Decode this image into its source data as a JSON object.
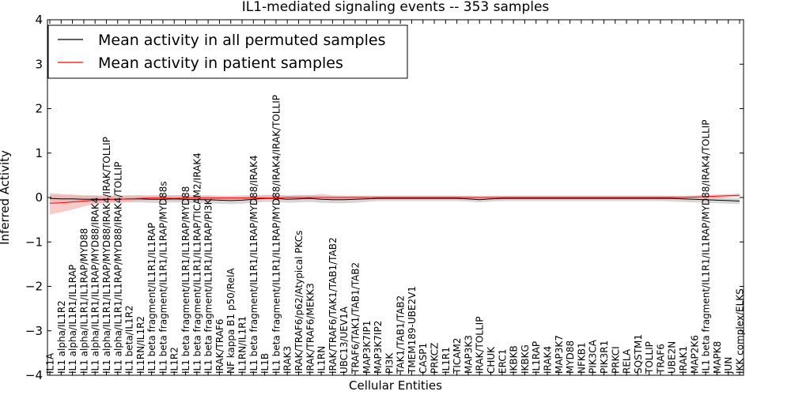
{
  "chart_data": {
    "type": "line",
    "title": "IL1-mediated signaling events -- 353 samples",
    "xlabel": "Cellular Entities",
    "ylabel": "Inferred Activity",
    "ylim": [
      -4,
      4
    ],
    "yticks": [
      -4,
      -3,
      -2,
      -1,
      0,
      1,
      2,
      3,
      4
    ],
    "ytick_labels": [
      "−4",
      "−3",
      "−2",
      "−1",
      "0",
      "1",
      "2",
      "3",
      "4"
    ],
    "grid": false,
    "legend_location": "top-left",
    "categories": [
      "IL1A",
      "IL1 alpha/IL1R2",
      "IL1 alpha/IL1R1/IL1RAP",
      "IL1 alpha/IL1R1/IL1RAP/MYD88",
      "IL1 alpha/IL1R1/IL1RAP/MYD88/IRAK4",
      "IL1 alpha/IL1R1/IL1RAP/MYD88/IRAK4/IRAK/TOLLIP",
      "IL1 alpha/IL1R1/IL1RAP/MYD88/IRAK4/TOLLIP",
      "IL1 beta/IL1R2",
      "IL1RN/IL1R2",
      "IL1 beta fragment/IL1R1/IL1RAP",
      "IL1 beta fragment/IL1R1/IL1RAP/MYD88s",
      "IL1R2",
      "IL1 beta fragment/IL1R1/IL1RAP/MYD88",
      "IL1 beta fragment/IL1R1/IL1RAP/TICAM2/IRAK4",
      "IL1 beta fragment/IL1R1/IL1RAP/PI3K",
      "IRAK/TRAF6",
      "NF kappa B1 p50/RelA",
      "IL1RN/IL1R1",
      "IL1 beta fragment/IL1R1/IL1RAP/MYD88/IRAK4",
      "IL1B",
      "IL1 beta fragment/IL1R1/IL1RAP/MYD88/IRAK4/IRAK/TOLLIP",
      "IRAK3",
      "IRAK/TRAF6/p62/Atypical PKCs",
      "IRAK/TRAF6/MEKK3",
      "IL1RN",
      "IRAK/TRAF6/TAK1/TAB1/TAB2",
      "UBC13/UEV1A",
      "TRAF6/TAK1/TAB1/TAB2",
      "MAP3K7IP1",
      "MAP3K7IP2",
      "PI3K",
      "TAK1/TAB1/TAB2",
      "TMEM189-UBE2V1",
      "CASP1",
      "PRKCZ",
      "IL1R1",
      "TICAM2",
      "MAP3K3",
      "IRAK/TOLLIP",
      "CHUK",
      "ERC1",
      "IKBKB",
      "IKBKG",
      "IL1RAP",
      "IRAK4",
      "MAP3K7",
      "MYD88",
      "NFKB1",
      "PIK3CA",
      "PIK3R1",
      "PRKCI",
      "RELA",
      "SQSTM1",
      "TOLLIP",
      "TRAF6",
      "UBE2N",
      "IRAK1",
      "MAP2K6",
      "IL1 beta fragment/IL1R1/IL1RAP/MYD88/IRAK4/TOLLIP",
      "MAPK8",
      "JUN",
      "IKK complex/ELKS"
    ],
    "series": [
      {
        "name": "Mean activity in all permuted samples",
        "color": "#000000",
        "band_color": "#c0c0c0",
        "values": [
          -0.02,
          -0.03,
          -0.03,
          -0.04,
          -0.04,
          -0.04,
          -0.04,
          -0.03,
          -0.03,
          -0.04,
          -0.04,
          -0.03,
          -0.04,
          -0.05,
          -0.05,
          -0.06,
          -0.07,
          -0.06,
          -0.04,
          -0.02,
          -0.02,
          -0.04,
          -0.03,
          -0.02,
          -0.04,
          -0.05,
          -0.05,
          -0.04,
          -0.03,
          -0.02,
          -0.02,
          -0.02,
          -0.02,
          -0.02,
          -0.02,
          -0.02,
          -0.02,
          -0.03,
          -0.05,
          -0.03,
          -0.02,
          -0.02,
          -0.02,
          -0.02,
          -0.02,
          -0.02,
          -0.02,
          -0.02,
          -0.02,
          -0.02,
          -0.02,
          -0.02,
          -0.02,
          -0.02,
          -0.02,
          -0.02,
          -0.03,
          -0.04,
          -0.05,
          -0.06,
          -0.07,
          -0.08
        ],
        "band_lower": [
          -0.1,
          -0.12,
          -0.12,
          -0.12,
          -0.12,
          -0.12,
          -0.12,
          -0.11,
          -0.11,
          -0.12,
          -0.12,
          -0.11,
          -0.12,
          -0.13,
          -0.13,
          -0.14,
          -0.15,
          -0.14,
          -0.12,
          -0.1,
          -0.1,
          -0.12,
          -0.11,
          -0.1,
          -0.12,
          -0.13,
          -0.13,
          -0.12,
          -0.1,
          -0.08,
          -0.08,
          -0.08,
          -0.08,
          -0.08,
          -0.08,
          -0.08,
          -0.08,
          -0.09,
          -0.11,
          -0.09,
          -0.08,
          -0.08,
          -0.08,
          -0.08,
          -0.08,
          -0.08,
          -0.08,
          -0.08,
          -0.08,
          -0.08,
          -0.08,
          -0.08,
          -0.08,
          -0.08,
          -0.08,
          -0.09,
          -0.1,
          -0.11,
          -0.12,
          -0.13,
          -0.14,
          -0.15
        ],
        "band_upper": [
          0.06,
          0.05,
          0.05,
          0.04,
          0.04,
          0.04,
          0.04,
          0.05,
          0.05,
          0.04,
          0.04,
          0.05,
          0.04,
          0.03,
          0.03,
          0.02,
          0.01,
          0.02,
          0.04,
          0.06,
          0.06,
          0.04,
          0.05,
          0.06,
          0.04,
          0.03,
          0.03,
          0.04,
          0.04,
          0.04,
          0.04,
          0.04,
          0.04,
          0.04,
          0.04,
          0.04,
          0.04,
          0.03,
          0.01,
          0.03,
          0.04,
          0.04,
          0.04,
          0.04,
          0.04,
          0.04,
          0.04,
          0.04,
          0.04,
          0.04,
          0.04,
          0.04,
          0.04,
          0.04,
          0.04,
          0.04,
          0.03,
          0.02,
          0.01,
          0.0,
          -0.01,
          -0.02
        ]
      },
      {
        "name": "Mean activity in patient samples",
        "color": "#ff0000",
        "band_color": "#f4a6a6",
        "values": [
          -0.13,
          -0.12,
          -0.1,
          -0.08,
          -0.06,
          -0.05,
          -0.04,
          -0.03,
          -0.02,
          -0.01,
          -0.01,
          -0.02,
          -0.01,
          -0.01,
          -0.01,
          -0.01,
          -0.01,
          -0.01,
          -0.01,
          -0.01,
          -0.01,
          0.0,
          0.0,
          0.0,
          0.0,
          0.0,
          0.0,
          0.0,
          0.0,
          0.0,
          0.0,
          0.0,
          0.0,
          0.0,
          0.0,
          0.0,
          0.0,
          0.0,
          0.0,
          0.0,
          0.0,
          0.0,
          0.0,
          0.0,
          0.0,
          0.0,
          0.0,
          0.0,
          0.0,
          0.0,
          0.0,
          0.0,
          0.0,
          0.0,
          0.0,
          0.0,
          0.0,
          0.01,
          0.02,
          0.03,
          0.04,
          0.05
        ],
        "band_lower": [
          -0.38,
          -0.33,
          -0.27,
          -0.2,
          -0.15,
          -0.12,
          -0.1,
          -0.09,
          -0.07,
          -0.06,
          -0.06,
          -0.07,
          -0.06,
          -0.05,
          -0.05,
          -0.05,
          -0.05,
          -0.05,
          -0.05,
          -0.05,
          -0.05,
          -0.04,
          -0.04,
          -0.04,
          -0.04,
          -0.04,
          -0.04,
          -0.04,
          -0.04,
          -0.04,
          -0.04,
          -0.04,
          -0.04,
          -0.04,
          -0.04,
          -0.04,
          -0.04,
          -0.04,
          -0.04,
          -0.04,
          -0.04,
          -0.04,
          -0.04,
          -0.04,
          -0.04,
          -0.04,
          -0.04,
          -0.04,
          -0.04,
          -0.04,
          -0.04,
          -0.04,
          -0.04,
          -0.04,
          -0.04,
          -0.04,
          -0.04,
          -0.03,
          -0.02,
          -0.01,
          0.0,
          0.01
        ],
        "band_upper": [
          0.1,
          0.08,
          0.07,
          0.05,
          0.05,
          0.04,
          0.04,
          0.04,
          0.05,
          0.05,
          0.06,
          0.05,
          0.06,
          0.05,
          0.05,
          0.04,
          0.04,
          0.05,
          0.05,
          0.05,
          0.06,
          0.05,
          0.06,
          0.05,
          0.08,
          0.05,
          0.04,
          0.04,
          0.04,
          0.04,
          0.04,
          0.04,
          0.04,
          0.04,
          0.04,
          0.04,
          0.04,
          0.04,
          0.04,
          0.04,
          0.04,
          0.04,
          0.04,
          0.04,
          0.04,
          0.04,
          0.04,
          0.04,
          0.04,
          0.04,
          0.04,
          0.04,
          0.04,
          0.04,
          0.04,
          0.04,
          0.04,
          0.05,
          0.06,
          0.07,
          0.08,
          0.09
        ]
      }
    ]
  }
}
